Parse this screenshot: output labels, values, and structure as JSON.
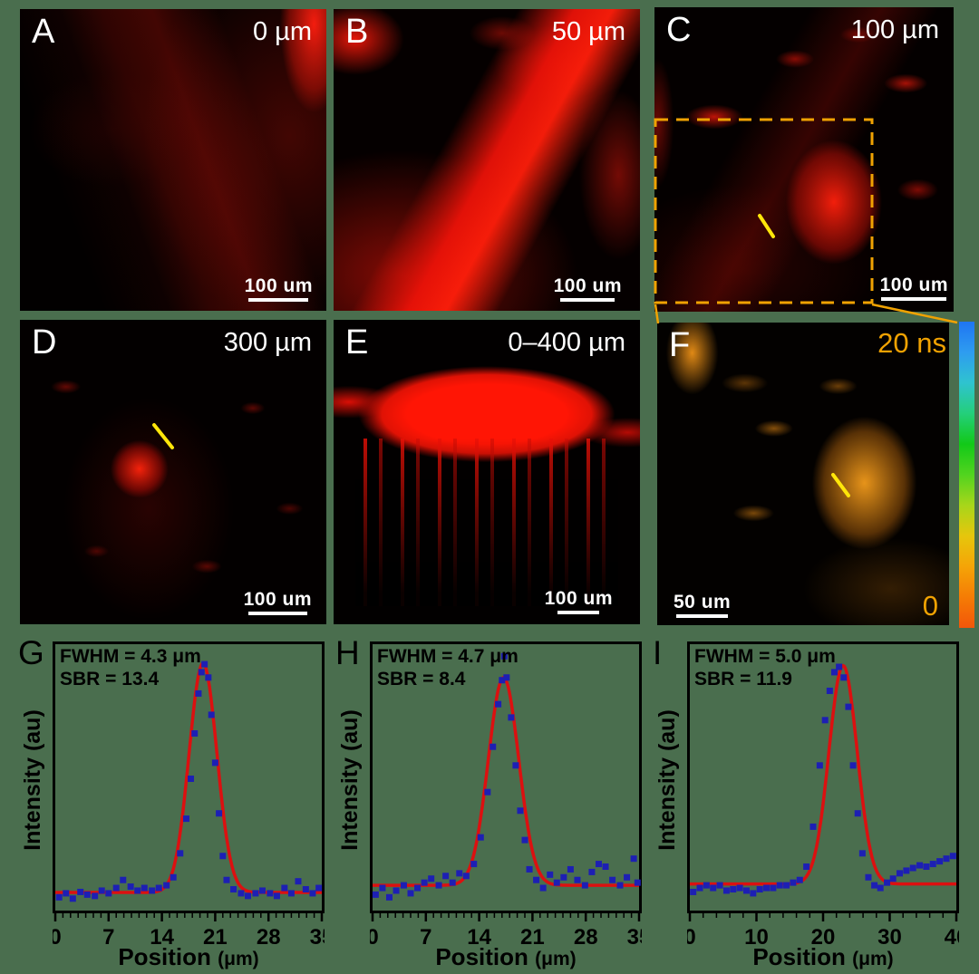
{
  "figure": {
    "colors": {
      "background": "#4a6e4e",
      "panel_black": "#020101",
      "accent_orange": "#f0a202",
      "accent_yellow": "#ffe60a",
      "marker_blue": "#1d1fb4",
      "fit_red": "#dc1010",
      "white": "#ffffff",
      "colorbar_stops": [
        "#1f75f2",
        "#2e9cf0",
        "#2fc3cf",
        "#24cf7a",
        "#12c918",
        "#52d41f",
        "#a8d61a",
        "#e6c60c",
        "#f5a407",
        "#f57c05",
        "#f2560a"
      ]
    },
    "panels": {
      "A": {
        "letter": "A",
        "depth_label": "0 µm",
        "scalebar": "100 um"
      },
      "B": {
        "letter": "B",
        "depth_label": "50 µm",
        "scalebar": "100 um"
      },
      "C": {
        "letter": "C",
        "depth_label": "100 µm",
        "scalebar": "100 um"
      },
      "D": {
        "letter": "D",
        "depth_label": "300 µm",
        "scalebar": "100 um"
      },
      "E": {
        "letter": "E",
        "depth_label": "0–400 µm",
        "scalebar": "100 um"
      },
      "F": {
        "letter": "F",
        "scalebar": "50 um",
        "colorbar_max": "20 ns",
        "colorbar_min": "0"
      }
    }
  },
  "chart_data": [
    {
      "id": "G",
      "panel_letter": "G",
      "type": "scatter",
      "annotation_line1": "FWHM = 4.3 μm",
      "annotation_line2": "SBR = 13.4",
      "xlabel": "Position",
      "xlabel_unit": "(μm)",
      "ylabel": "Intensity (au)",
      "xlim": [
        0,
        35
      ],
      "xticks": [
        0,
        7,
        14,
        21,
        28,
        35
      ],
      "minor_step": 1,
      "grid": false,
      "fit": {
        "shape": "gaussian",
        "center": 19.4,
        "sigma": 1.83,
        "base": 0.073,
        "amplitude": 0.86,
        "fwhm_um": 4.3,
        "sbr": 13.4
      },
      "points": [
        [
          0.5,
          0.055
        ],
        [
          1.4,
          0.07
        ],
        [
          2.3,
          0.05
        ],
        [
          3.3,
          0.075
        ],
        [
          4.2,
          0.065
        ],
        [
          5.2,
          0.06
        ],
        [
          6.1,
          0.08
        ],
        [
          7.0,
          0.07
        ],
        [
          8.0,
          0.09
        ],
        [
          8.9,
          0.12
        ],
        [
          9.9,
          0.095
        ],
        [
          10.8,
          0.08
        ],
        [
          11.7,
          0.09
        ],
        [
          12.7,
          0.08
        ],
        [
          13.6,
          0.09
        ],
        [
          14.6,
          0.1
        ],
        [
          15.5,
          0.13
        ],
        [
          16.4,
          0.22
        ],
        [
          17.2,
          0.35
        ],
        [
          17.8,
          0.5
        ],
        [
          18.3,
          0.67
        ],
        [
          18.8,
          0.82
        ],
        [
          19.2,
          0.9
        ],
        [
          19.6,
          0.93
        ],
        [
          20.1,
          0.88
        ],
        [
          20.5,
          0.74
        ],
        [
          21.0,
          0.56
        ],
        [
          21.5,
          0.37
        ],
        [
          22.0,
          0.21
        ],
        [
          22.5,
          0.12
        ],
        [
          23.4,
          0.085
        ],
        [
          24.4,
          0.07
        ],
        [
          25.3,
          0.06
        ],
        [
          26.3,
          0.07
        ],
        [
          27.2,
          0.08
        ],
        [
          28.2,
          0.07
        ],
        [
          29.1,
          0.06
        ],
        [
          30.1,
          0.09
        ],
        [
          31.0,
          0.07
        ],
        [
          31.9,
          0.115
        ],
        [
          32.9,
          0.085
        ],
        [
          33.8,
          0.07
        ],
        [
          34.6,
          0.09
        ]
      ]
    },
    {
      "id": "H",
      "panel_letter": "H",
      "type": "scatter",
      "annotation_line1": "FWHM = 4.7 μm",
      "annotation_line2": "SBR = 8.4",
      "xlabel": "Position",
      "xlabel_unit": "(μm)",
      "ylabel": "Intensity (au)",
      "xlim": [
        0,
        35
      ],
      "xticks": [
        0,
        7,
        14,
        21,
        28,
        35
      ],
      "minor_step": 1,
      "grid": false,
      "fit": {
        "shape": "gaussian",
        "center": 17.2,
        "sigma": 2.0,
        "base": 0.1,
        "amplitude": 0.78,
        "fwhm_um": 4.7,
        "sbr": 8.4
      },
      "points": [
        [
          0.4,
          0.065
        ],
        [
          1.3,
          0.09
        ],
        [
          2.2,
          0.055
        ],
        [
          3.1,
          0.08
        ],
        [
          4.1,
          0.1
        ],
        [
          5.0,
          0.07
        ],
        [
          5.9,
          0.09
        ],
        [
          6.8,
          0.11
        ],
        [
          7.7,
          0.125
        ],
        [
          8.7,
          0.1
        ],
        [
          9.6,
          0.135
        ],
        [
          10.5,
          0.11
        ],
        [
          11.4,
          0.145
        ],
        [
          12.3,
          0.135
        ],
        [
          13.3,
          0.18
        ],
        [
          14.2,
          0.28
        ],
        [
          15.1,
          0.45
        ],
        [
          15.8,
          0.62
        ],
        [
          16.5,
          0.78
        ],
        [
          17.0,
          0.87
        ],
        [
          17.3,
          0.96
        ],
        [
          17.6,
          0.88
        ],
        [
          18.2,
          0.73
        ],
        [
          18.8,
          0.55
        ],
        [
          19.4,
          0.38
        ],
        [
          20.0,
          0.27
        ],
        [
          20.6,
          0.16
        ],
        [
          21.5,
          0.12
        ],
        [
          22.4,
          0.09
        ],
        [
          23.3,
          0.14
        ],
        [
          24.2,
          0.11
        ],
        [
          25.1,
          0.13
        ],
        [
          26.0,
          0.16
        ],
        [
          26.9,
          0.12
        ],
        [
          27.9,
          0.1
        ],
        [
          28.8,
          0.15
        ],
        [
          29.7,
          0.18
        ],
        [
          30.6,
          0.17
        ],
        [
          31.5,
          0.12
        ],
        [
          32.5,
          0.1
        ],
        [
          33.4,
          0.13
        ],
        [
          34.3,
          0.2
        ],
        [
          34.8,
          0.11
        ]
      ]
    },
    {
      "id": "I",
      "panel_letter": "I",
      "type": "scatter",
      "annotation_line1": "FWHM = 5.0 μm",
      "annotation_line2": "SBR = 11.9",
      "xlabel": "Position",
      "xlabel_unit": "(μm)",
      "ylabel": "Intensity (au)",
      "xlim": [
        0,
        40
      ],
      "xticks": [
        0,
        10,
        20,
        30,
        40
      ],
      "minor_step": 2,
      "grid": false,
      "fit": {
        "shape": "gaussian",
        "center": 23.0,
        "sigma": 2.12,
        "base": 0.105,
        "amplitude": 0.82,
        "fwhm_um": 5.0,
        "sbr": 11.9
      },
      "points": [
        [
          0.5,
          0.075
        ],
        [
          1.5,
          0.09
        ],
        [
          2.5,
          0.1
        ],
        [
          3.5,
          0.09
        ],
        [
          4.5,
          0.1
        ],
        [
          5.5,
          0.08
        ],
        [
          6.5,
          0.085
        ],
        [
          7.5,
          0.09
        ],
        [
          8.5,
          0.08
        ],
        [
          9.5,
          0.07
        ],
        [
          10.5,
          0.085
        ],
        [
          11.5,
          0.09
        ],
        [
          12.5,
          0.09
        ],
        [
          13.5,
          0.1
        ],
        [
          14.5,
          0.1
        ],
        [
          15.5,
          0.11
        ],
        [
          16.5,
          0.12
        ],
        [
          17.5,
          0.17
        ],
        [
          18.5,
          0.32
        ],
        [
          19.5,
          0.55
        ],
        [
          20.3,
          0.72
        ],
        [
          21.0,
          0.83
        ],
        [
          21.7,
          0.9
        ],
        [
          22.4,
          0.92
        ],
        [
          23.1,
          0.88
        ],
        [
          23.8,
          0.77
        ],
        [
          24.5,
          0.55
        ],
        [
          25.2,
          0.37
        ],
        [
          25.9,
          0.22
        ],
        [
          26.8,
          0.13
        ],
        [
          27.7,
          0.1
        ],
        [
          28.6,
          0.09
        ],
        [
          29.6,
          0.11
        ],
        [
          30.5,
          0.125
        ],
        [
          31.5,
          0.145
        ],
        [
          32.5,
          0.155
        ],
        [
          33.5,
          0.165
        ],
        [
          34.5,
          0.175
        ],
        [
          35.5,
          0.17
        ],
        [
          36.5,
          0.18
        ],
        [
          37.5,
          0.19
        ],
        [
          38.5,
          0.2
        ],
        [
          39.5,
          0.21
        ]
      ]
    }
  ]
}
